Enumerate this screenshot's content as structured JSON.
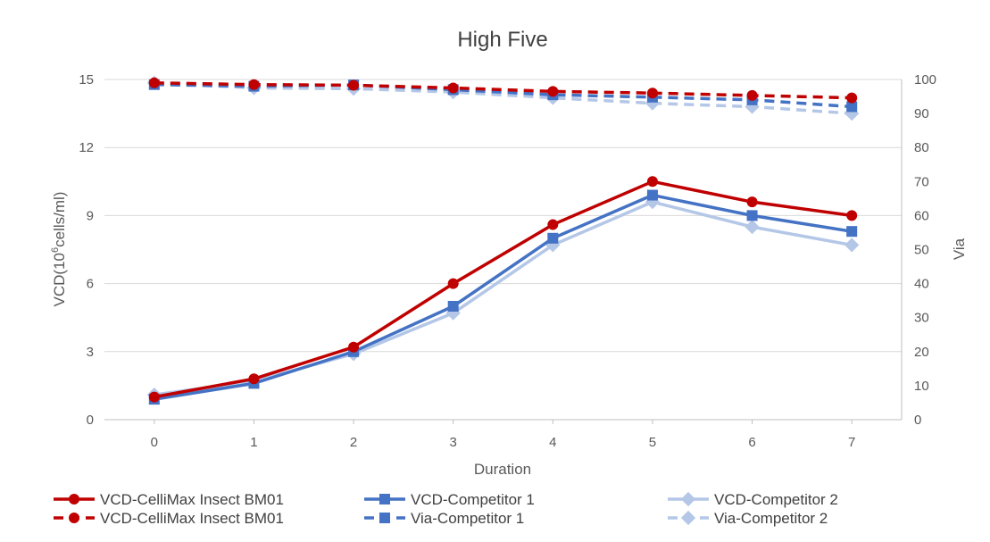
{
  "chart_data": {
    "type": "line",
    "title": "High Five",
    "xlabel": "Duration",
    "ylabel_left_prefix": "VCD(10",
    "ylabel_left_sup": "6",
    "ylabel_left_suffix": "cells/ml)",
    "ylabel_right": "Via",
    "x": [
      0,
      1,
      2,
      3,
      4,
      5,
      6,
      7
    ],
    "x_ticks": [
      "0",
      "1",
      "2",
      "3",
      "4",
      "5",
      "6",
      "7"
    ],
    "ylim_left": [
      0,
      15
    ],
    "yticks_left": [
      "0",
      "3",
      "6",
      "9",
      "12",
      "15"
    ],
    "ylim_right": [
      0,
      100
    ],
    "yticks_right": [
      "0",
      "10",
      "20",
      "30",
      "40",
      "50",
      "60",
      "70",
      "80",
      "90",
      "100"
    ],
    "grid": "horizontal",
    "legend_position": "bottom",
    "series": [
      {
        "name": "VCD-CelliMax Insect BM01",
        "axis": "left",
        "style": "solid",
        "marker": "circle",
        "color": "#c00000",
        "values": [
          1.0,
          1.8,
          3.2,
          6.0,
          8.6,
          10.5,
          9.6,
          9.0
        ]
      },
      {
        "name": "VCD-Competitor 1",
        "axis": "left",
        "style": "solid",
        "marker": "square",
        "color": "#4472c4",
        "values": [
          0.9,
          1.6,
          3.0,
          5.0,
          8.0,
          9.9,
          9.0,
          8.3
        ]
      },
      {
        "name": "VCD-Competitor 2",
        "axis": "left",
        "style": "solid",
        "marker": "diamond",
        "color": "#b4c7e7",
        "values": [
          1.1,
          1.7,
          2.9,
          4.7,
          7.7,
          9.6,
          8.5,
          7.7
        ]
      },
      {
        "name": "VCD-CelliMax Insect BM01",
        "axis": "right",
        "style": "dashed",
        "marker": "circle",
        "color": "#c00000",
        "values": [
          99,
          98.5,
          98.3,
          97.5,
          96.5,
          96,
          95.3,
          94.6
        ]
      },
      {
        "name": "Via-Competitor 1",
        "axis": "right",
        "style": "dashed",
        "marker": "square",
        "color": "#4472c4",
        "values": [
          98.5,
          98,
          98.4,
          97,
          95.5,
          94.8,
          94,
          92
        ]
      },
      {
        "name": "Via-Competitor 2",
        "axis": "right",
        "style": "dashed",
        "marker": "diamond",
        "color": "#b4c7e7",
        "values": [
          99,
          97.5,
          97.3,
          96.3,
          94.6,
          93,
          92,
          90
        ]
      }
    ]
  }
}
